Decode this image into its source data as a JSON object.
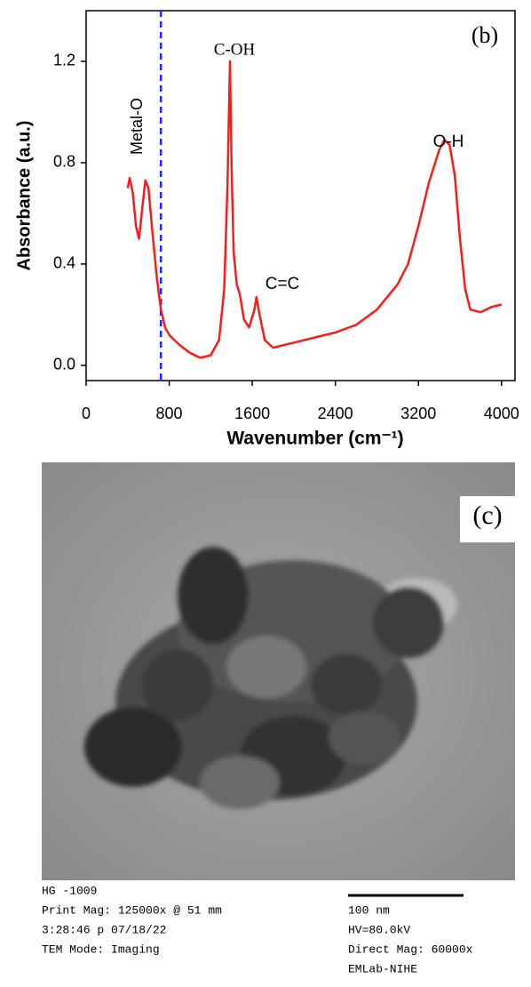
{
  "chart_data": {
    "type": "line",
    "panel_label": "(b)",
    "xlabel": "Wavenumber (cm⁻¹)",
    "ylabel": "Absorbance (a.u.)",
    "xlim": [
      0,
      4130
    ],
    "ylim": [
      -0.06,
      1.4
    ],
    "xticks": [
      0,
      800,
      1600,
      2400,
      3200,
      4000
    ],
    "yticks": [
      {
        "value": 0,
        "label": "0.0"
      },
      0.4,
      0.8,
      1.2
    ],
    "reference_line_x": 720,
    "reference_line_color": "#1a2bff",
    "annotations": [
      "Metal-O",
      "C-OH",
      "C=C",
      "O-H"
    ],
    "series": [
      {
        "color": "#ff1a1a",
        "x": [
          400,
          420,
          450,
          480,
          510,
          540,
          570,
          600,
          640,
          680,
          720,
          760,
          800,
          850,
          900,
          1000,
          1100,
          1200,
          1280,
          1330,
          1360,
          1385,
          1400,
          1420,
          1450,
          1480,
          1520,
          1570,
          1620,
          1640,
          1670,
          1720,
          1800,
          2000,
          2200,
          2400,
          2600,
          2800,
          3000,
          3100,
          3200,
          3300,
          3400,
          3450,
          3500,
          3550,
          3600,
          3650,
          3700,
          3800,
          3900,
          4000
        ],
        "values": [
          0.7,
          0.74,
          0.68,
          0.55,
          0.5,
          0.62,
          0.73,
          0.7,
          0.52,
          0.35,
          0.22,
          0.15,
          0.12,
          0.1,
          0.08,
          0.05,
          0.03,
          0.04,
          0.1,
          0.3,
          0.7,
          1.2,
          0.8,
          0.45,
          0.32,
          0.28,
          0.18,
          0.15,
          0.22,
          0.27,
          0.2,
          0.1,
          0.07,
          0.09,
          0.11,
          0.13,
          0.16,
          0.22,
          0.32,
          0.4,
          0.55,
          0.72,
          0.85,
          0.89,
          0.87,
          0.75,
          0.5,
          0.3,
          0.22,
          0.21,
          0.23,
          0.24
        ]
      }
    ]
  },
  "image": {
    "panel_label": "(c)",
    "info_left": [
      "HG -1009",
      "Print Mag: 125000x @ 51 mm",
      "3:28:46 p 07/18/22",
      "TEM Mode: Imaging"
    ],
    "info_right": [
      "100 nm",
      "HV=80.0kV",
      "Direct Mag: 60000x",
      "EMLab-NIHE"
    ]
  }
}
